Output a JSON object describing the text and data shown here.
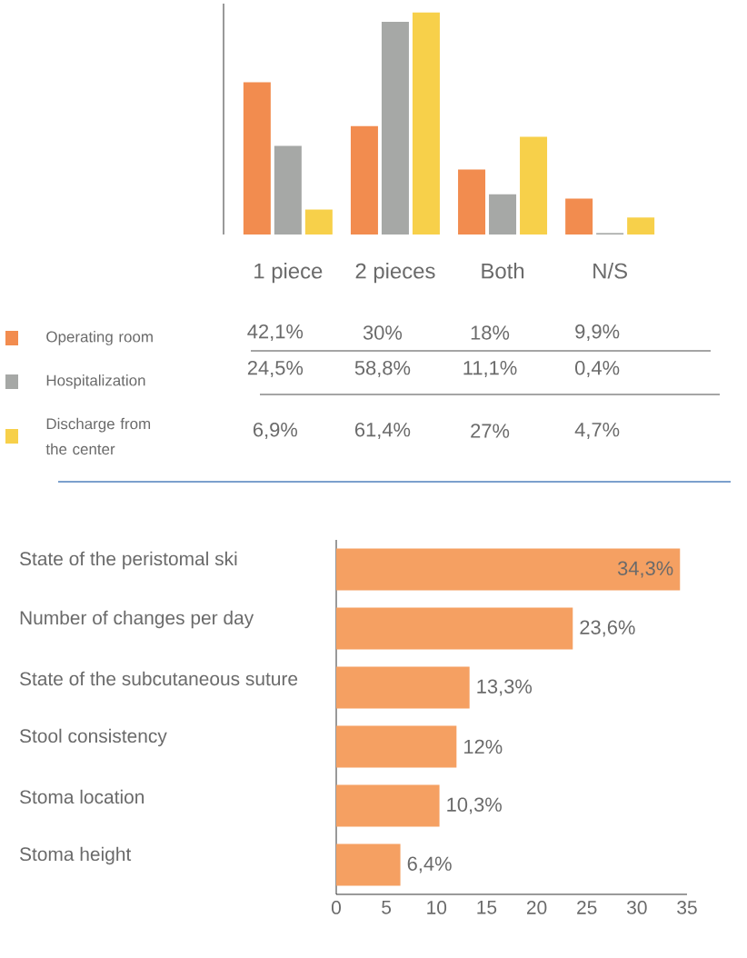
{
  "chart_data": [
    {
      "type": "bar",
      "categories": [
        "1 piece",
        "2 pieces",
        "Both",
        "N/S"
      ],
      "legend": "bottom",
      "tick_labels": "x",
      "series": [
        {
          "name": "Operating room",
          "color": "#f28c4f",
          "values": [
            42.1,
            30,
            18,
            9.9
          ],
          "value_labels": [
            "42,1%",
            "30%",
            "18%",
            "9,9%"
          ]
        },
        {
          "name": "Hospitalization",
          "color": "#a6a8a6",
          "values": [
            24.5,
            58.8,
            11.1,
            0.4
          ],
          "value_labels": [
            "24,5%",
            "58,8%",
            "11,1%",
            "0,4%"
          ]
        },
        {
          "name": "Discharge from the center",
          "color": "#f7d04a",
          "values": [
            6.9,
            61.4,
            27,
            4.7
          ],
          "value_labels": [
            "6,9%",
            "61,4%",
            "27%",
            "4,7%"
          ]
        }
      ]
    },
    {
      "type": "bar",
      "orientation": "horizontal",
      "categories": [
        "State of the peristomal ski",
        "Number of changes per  day",
        "State of the subcutaneous suture",
        "Stool consistency",
        "Stoma location",
        "Stoma height"
      ],
      "color": "#f5a062",
      "values": [
        34.3,
        23.6,
        13.3,
        12,
        10.3,
        6.4
      ],
      "value_labels": [
        "34,3%",
        "23,6%",
        "13,3%",
        "12%",
        "10,3%",
        "6,4%"
      ],
      "xlim": [
        0,
        35
      ],
      "xticks": [
        0,
        5,
        10,
        15,
        20,
        25,
        30,
        35
      ]
    }
  ]
}
